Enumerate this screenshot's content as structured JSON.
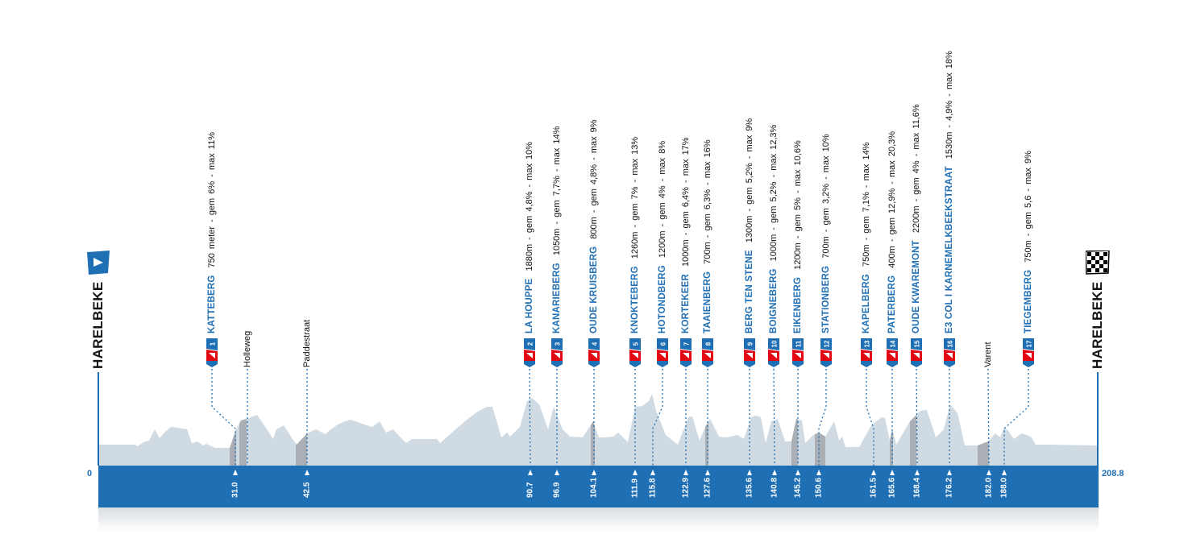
{
  "start": {
    "town": "HARELBEKE",
    "distance": "0",
    "icon": "start-flag-icon"
  },
  "finish": {
    "town": "HARELBEKE",
    "distance": "208.8",
    "icon": "checkered-flag-icon"
  },
  "colors": {
    "accent": "#1f6fb5",
    "climb_red": "#e30613",
    "profile": "#cfdae2",
    "climb_shade": "#a9afb5"
  },
  "climbs": [
    {
      "num": "1",
      "name": "KATTEBERG",
      "stats": "750 meter  -  gem 6% - max 11%",
      "km": "31.0"
    },
    {
      "num": "2",
      "name": "LA HOUPPE",
      "stats": "1880m  -  gem 4,8% - max 10%",
      "km": "90.7"
    },
    {
      "num": "3",
      "name": "KANARIEBERG",
      "stats": "1050m  -  gem 7,7% - max 14%",
      "km": "96.9"
    },
    {
      "num": "4",
      "name": "OUDE KRUISBERG",
      "stats": "800m  -  gem 4,8% - max 9%",
      "km": "104.1"
    },
    {
      "num": "5",
      "name": "KNOKTEBERG",
      "stats": "1260m  -  gem 7% - max 13%",
      "km": "111.9"
    },
    {
      "num": "6",
      "name": "HOTONDBERG",
      "stats": "1200m  -  gem 4% - max 8%",
      "km": "115.8"
    },
    {
      "num": "7",
      "name": "KORTEKEER",
      "stats": "1000m  -  gem 6,4% - max 17%",
      "km": "122.9"
    },
    {
      "num": "8",
      "name": "TAAIENBERG",
      "stats": "700m  -  gem 6,3% - max 16%",
      "km": "127.6"
    },
    {
      "num": "9",
      "name": "BERG TEN STENE",
      "stats": "1300m  -  gem 5,2% - max 9%",
      "km": "135.6"
    },
    {
      "num": "10",
      "name": "BOIGNEBERG",
      "stats": "1000m  -  gem 5,2% - max 12,3%",
      "km": "140.8"
    },
    {
      "num": "11",
      "name": "EIKENBERG",
      "stats": "1200m  -  gem 5% - max 10,6%",
      "km": "145.2"
    },
    {
      "num": "12",
      "name": "STATIONBERG",
      "stats": "700m  -  gem 3,2% - max 10%",
      "km": "150.6"
    },
    {
      "num": "13",
      "name": "KAPELBERG",
      "stats": "750m  -  gem 7,1% - max 14%",
      "km": "161.5"
    },
    {
      "num": "14",
      "name": "PATERBERG",
      "stats": "400m  -  gem 12,9% - max 20,3%",
      "km": "165.6"
    },
    {
      "num": "15",
      "name": "OUDE KWAREMONT",
      "stats": "2200m  -  gem 4% - max 11,6%",
      "km": "168.4"
    },
    {
      "num": "16",
      "name": "E3 COL I KARNEMELKBEEKSTRAAT",
      "stats": "1530m  -  4,9% - max 18%",
      "km": "176.2"
    },
    {
      "num": "17",
      "name": "TIEGEMBERG",
      "stats": "750m  -  gem 5,6 - max 9%",
      "km": "188.0"
    }
  ],
  "streets": [
    {
      "name": "Holleweg"
    },
    {
      "name": "Paddestraat",
      "km": "42.5"
    },
    {
      "name": "Varent",
      "km": "182.0"
    }
  ]
}
